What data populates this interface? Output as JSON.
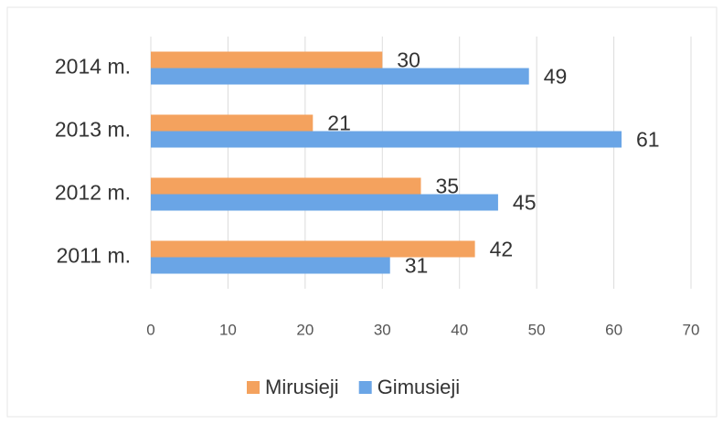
{
  "chart_data": {
    "type": "hbar",
    "categories": [
      "2014 m.",
      "2013 m.",
      "2012 m.",
      "2011 m."
    ],
    "series": [
      {
        "name": "Mirusieji",
        "color": "#f4a25e",
        "values": [
          30,
          21,
          35,
          42
        ]
      },
      {
        "name": "Gimusieji",
        "color": "#6aa5e6",
        "values": [
          49,
          61,
          45,
          31
        ]
      }
    ],
    "xlim": [
      0,
      70
    ],
    "xticks": [
      0,
      10,
      20,
      30,
      40,
      50,
      60,
      70
    ],
    "grid": true,
    "legend": "bottom"
  }
}
